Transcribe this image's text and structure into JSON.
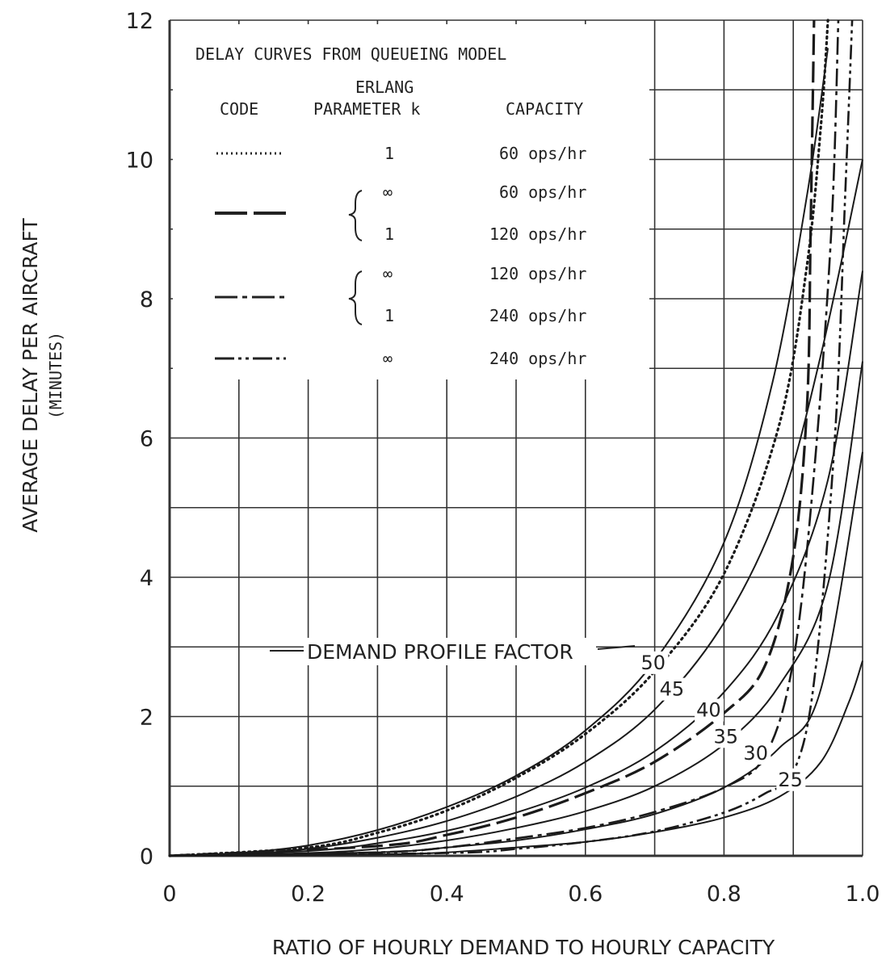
{
  "chart_data": {
    "type": "line",
    "xlabel": "RATIO OF HOURLY DEMAND TO HOURLY CAPACITY",
    "ylabel": "AVERAGE DELAY PER AIRCRAFT",
    "ylabel_sub": "(MINUTES)",
    "xlim": [
      0,
      1.0
    ],
    "ylim": [
      0,
      12
    ],
    "x_ticks": [
      {
        "value": 0,
        "label": "0"
      },
      {
        "value": 0.2,
        "label": "0.2"
      },
      {
        "value": 0.4,
        "label": "0.4"
      },
      {
        "value": 0.6,
        "label": "0.6"
      },
      {
        "value": 0.8,
        "label": "0.8"
      },
      {
        "value": 1.0,
        "label": "1.0"
      }
    ],
    "y_ticks": [
      {
        "value": 0,
        "label": "0"
      },
      {
        "value": 2,
        "label": "2"
      },
      {
        "value": 4,
        "label": "4"
      },
      {
        "value": 6,
        "label": "6"
      },
      {
        "value": 8,
        "label": "8"
      },
      {
        "value": 10,
        "label": "10"
      },
      {
        "value": 12,
        "label": "12"
      }
    ],
    "grid": true,
    "annotation": "DEMAND PROFILE FACTOR",
    "legend": {
      "title": "DELAY CURVES FROM QUEUEING MODEL",
      "header_code": "CODE",
      "header_erlang_line1": "ERLANG",
      "header_erlang_line2": "PARAMETER k",
      "header_capacity": "CAPACITY",
      "rows": [
        {
          "k": "1",
          "capacity": "60 ops/hr"
        },
        {
          "k": "∞",
          "capacity": "60 ops/hr"
        },
        {
          "k": "1",
          "capacity": "120 ops/hr"
        },
        {
          "k": "∞",
          "capacity": "120 ops/hr"
        },
        {
          "k": "1",
          "capacity": "240 ops/hr"
        },
        {
          "k": "∞",
          "capacity": "240 ops/hr"
        }
      ]
    },
    "series": [
      {
        "label": "50",
        "style": "solid",
        "points": [
          [
            0,
            0
          ],
          [
            0.1,
            0.04
          ],
          [
            0.2,
            0.15
          ],
          [
            0.3,
            0.37
          ],
          [
            0.4,
            0.7
          ],
          [
            0.5,
            1.15
          ],
          [
            0.6,
            1.8
          ],
          [
            0.7,
            2.8
          ],
          [
            0.8,
            4.5
          ],
          [
            0.87,
            6.8
          ],
          [
            0.92,
            9.5
          ],
          [
            0.95,
            11.6
          ]
        ]
      },
      {
        "label": "45",
        "style": "solid",
        "points": [
          [
            0,
            0
          ],
          [
            0.1,
            0.02
          ],
          [
            0.2,
            0.1
          ],
          [
            0.3,
            0.26
          ],
          [
            0.4,
            0.5
          ],
          [
            0.5,
            0.85
          ],
          [
            0.6,
            1.35
          ],
          [
            0.7,
            2.1
          ],
          [
            0.8,
            3.35
          ],
          [
            0.88,
            5.0
          ],
          [
            0.94,
            7.2
          ],
          [
            1.0,
            10.0
          ]
        ]
      },
      {
        "label": "40",
        "style": "solid",
        "points": [
          [
            0,
            0
          ],
          [
            0.2,
            0.07
          ],
          [
            0.3,
            0.18
          ],
          [
            0.4,
            0.36
          ],
          [
            0.5,
            0.62
          ],
          [
            0.6,
            0.98
          ],
          [
            0.7,
            1.5
          ],
          [
            0.8,
            2.35
          ],
          [
            0.88,
            3.5
          ],
          [
            0.95,
            5.4
          ],
          [
            1.0,
            8.4
          ]
        ]
      },
      {
        "label": "35",
        "style": "solid",
        "points": [
          [
            0,
            0
          ],
          [
            0.2,
            0.04
          ],
          [
            0.3,
            0.1
          ],
          [
            0.4,
            0.22
          ],
          [
            0.5,
            0.4
          ],
          [
            0.6,
            0.64
          ],
          [
            0.7,
            1.0
          ],
          [
            0.8,
            1.6
          ],
          [
            0.88,
            2.45
          ],
          [
            0.95,
            3.9
          ],
          [
            1.0,
            7.1
          ]
        ]
      },
      {
        "label": "30",
        "style": "solid",
        "points": [
          [
            0,
            0
          ],
          [
            0.3,
            0.05
          ],
          [
            0.4,
            0.12
          ],
          [
            0.5,
            0.22
          ],
          [
            0.6,
            0.38
          ],
          [
            0.7,
            0.6
          ],
          [
            0.8,
            0.98
          ],
          [
            0.88,
            1.55
          ],
          [
            0.94,
            2.4
          ],
          [
            1.0,
            5.8
          ]
        ]
      },
      {
        "label": "25",
        "style": "solid",
        "points": [
          [
            0,
            0
          ],
          [
            0.3,
            0.02
          ],
          [
            0.4,
            0.05
          ],
          [
            0.5,
            0.12
          ],
          [
            0.6,
            0.2
          ],
          [
            0.7,
            0.34
          ],
          [
            0.8,
            0.55
          ],
          [
            0.88,
            0.85
          ],
          [
            0.94,
            1.35
          ],
          [
            0.98,
            2.2
          ],
          [
            1.0,
            2.8
          ]
        ]
      },
      {
        "label": "",
        "style": "dotted",
        "points": [
          [
            0,
            0
          ],
          [
            0.2,
            0.12
          ],
          [
            0.3,
            0.33
          ],
          [
            0.4,
            0.65
          ],
          [
            0.5,
            1.12
          ],
          [
            0.6,
            1.75
          ],
          [
            0.7,
            2.65
          ],
          [
            0.8,
            4.05
          ],
          [
            0.88,
            6.2
          ],
          [
            0.92,
            8.5
          ],
          [
            0.94,
            10.5
          ],
          [
            0.95,
            12.0
          ]
        ]
      },
      {
        "label": "",
        "style": "dashed",
        "points": [
          [
            0,
            0
          ],
          [
            0.3,
            0.14
          ],
          [
            0.4,
            0.3
          ],
          [
            0.5,
            0.55
          ],
          [
            0.6,
            0.9
          ],
          [
            0.7,
            1.35
          ],
          [
            0.8,
            2.05
          ],
          [
            0.86,
            2.75
          ],
          [
            0.9,
            4.3
          ],
          [
            0.92,
            6.5
          ],
          [
            0.925,
            9.0
          ],
          [
            0.93,
            12.0
          ]
        ]
      },
      {
        "label": "",
        "style": "dashdot",
        "points": [
          [
            0,
            0
          ],
          [
            0.3,
            0.05
          ],
          [
            0.4,
            0.12
          ],
          [
            0.5,
            0.25
          ],
          [
            0.6,
            0.4
          ],
          [
            0.7,
            0.63
          ],
          [
            0.8,
            0.98
          ],
          [
            0.86,
            1.45
          ],
          [
            0.9,
            2.8
          ],
          [
            0.93,
            5.5
          ],
          [
            0.955,
            9.0
          ],
          [
            0.965,
            12.0
          ]
        ]
      },
      {
        "label": "",
        "style": "dashdotdot",
        "points": [
          [
            0,
            0
          ],
          [
            0.4,
            0.04
          ],
          [
            0.5,
            0.1
          ],
          [
            0.6,
            0.2
          ],
          [
            0.7,
            0.35
          ],
          [
            0.8,
            0.62
          ],
          [
            0.86,
            0.9
          ],
          [
            0.9,
            1.2
          ],
          [
            0.93,
            2.5
          ],
          [
            0.96,
            6.0
          ],
          [
            0.975,
            9.5
          ],
          [
            0.985,
            12.0
          ]
        ]
      }
    ]
  }
}
